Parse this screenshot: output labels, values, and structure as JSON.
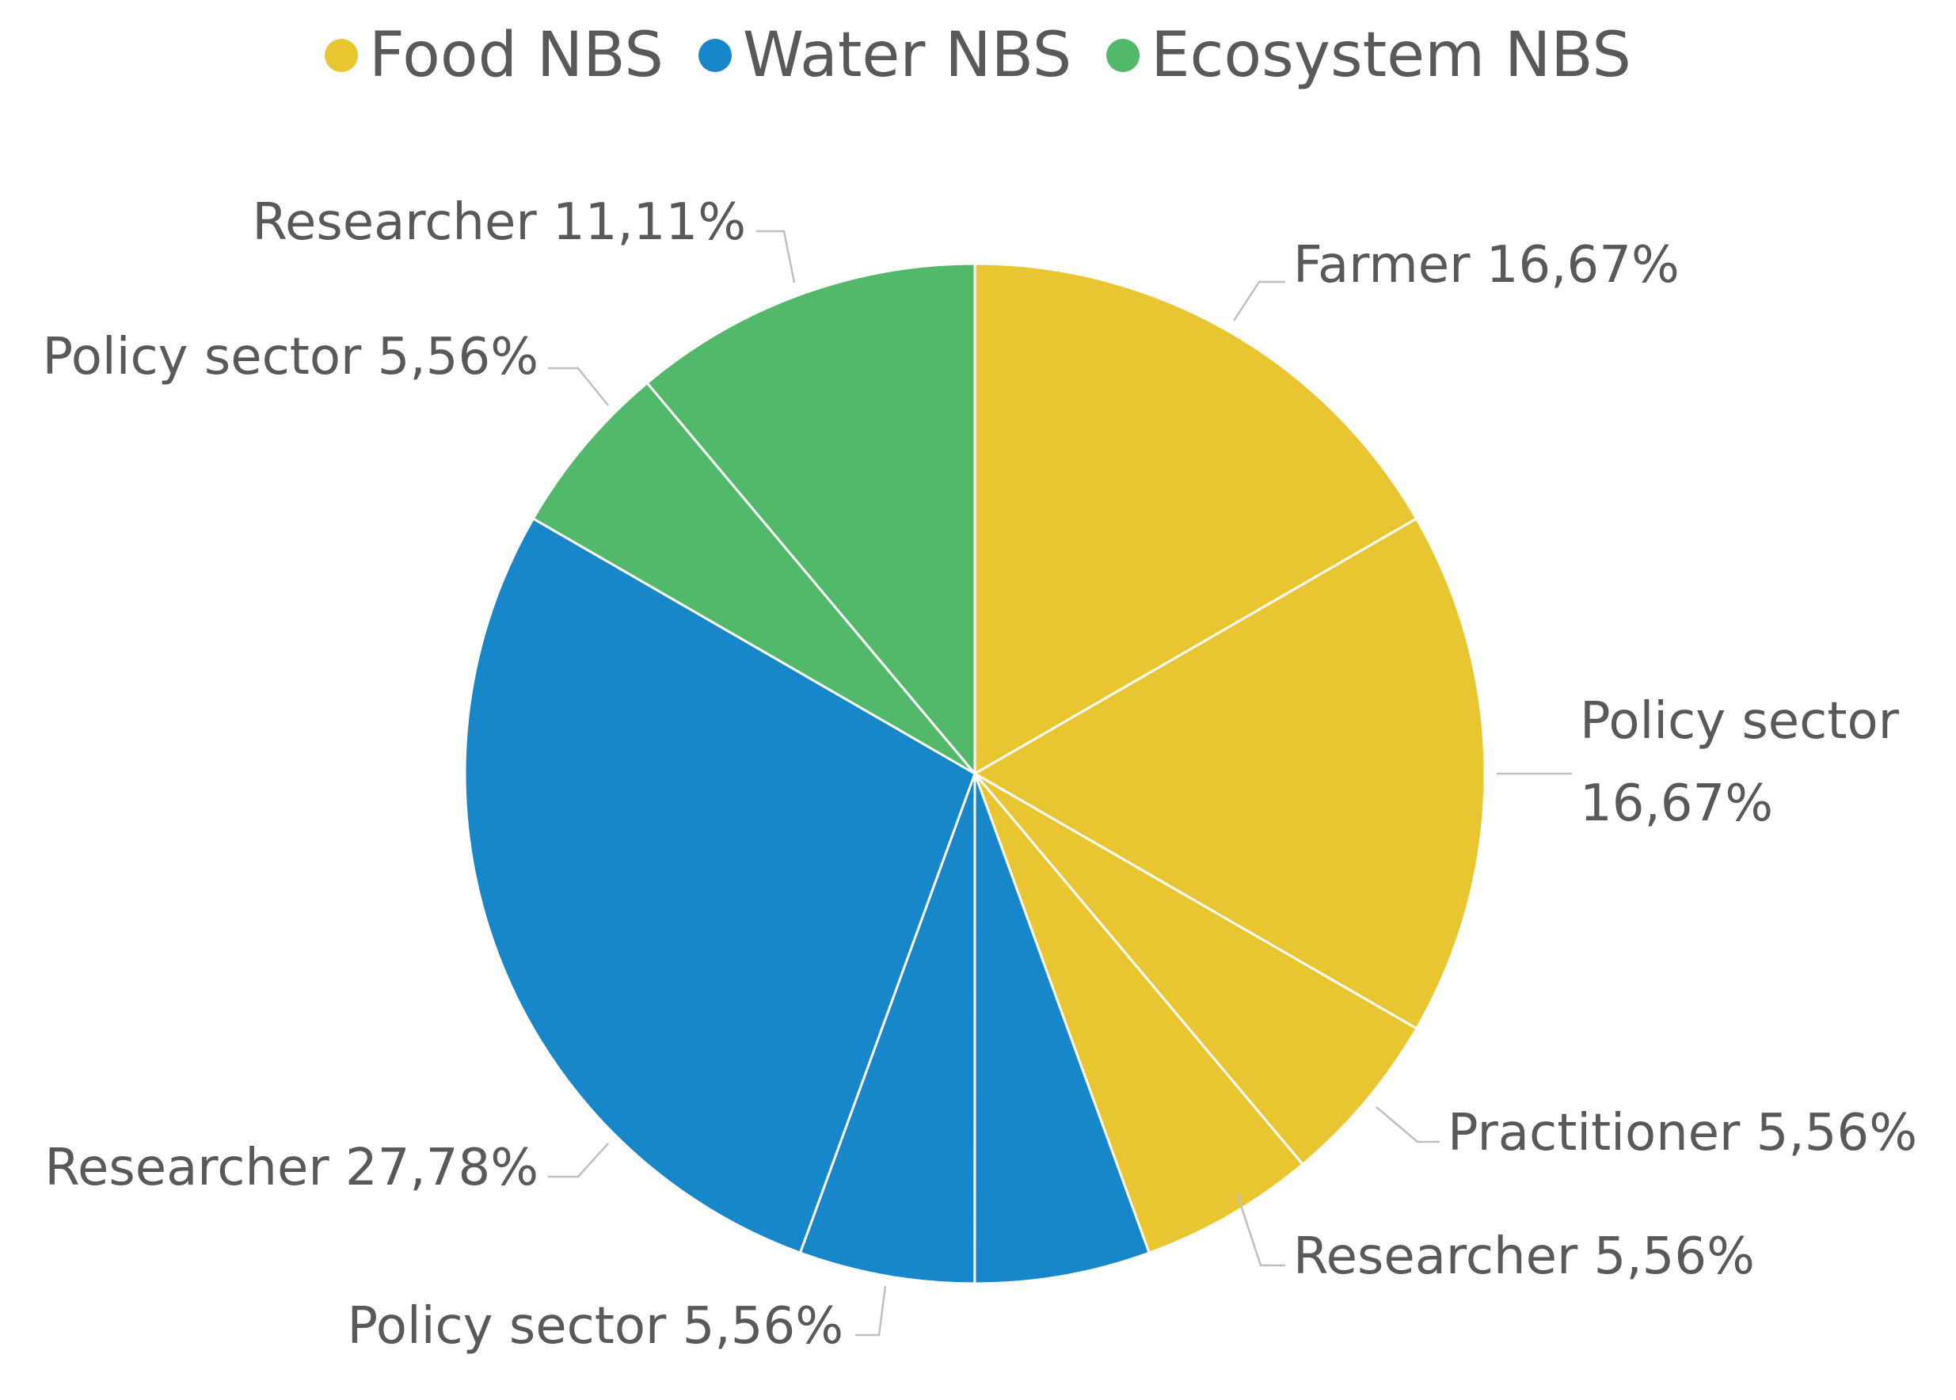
{
  "chart_data": {
    "type": "pie",
    "legend_position": "top",
    "legend": [
      {
        "name": "Food NBS",
        "color": "#EAC532"
      },
      {
        "name": "Water NBS",
        "color": "#1787C9"
      },
      {
        "name": "Ecosystem NBS",
        "color": "#52B96B"
      }
    ],
    "slices": [
      {
        "label": "Farmer",
        "value": 16.67,
        "value_label": "16,67%",
        "group": "Food NBS",
        "color": "#EAC532"
      },
      {
        "label": "Policy sector",
        "value": 16.67,
        "value_label": "16,67%",
        "group": "Food NBS",
        "color": "#EAC532"
      },
      {
        "label": "Practitioner",
        "value": 5.56,
        "value_label": "5,56%",
        "group": "Food NBS",
        "color": "#EAC532"
      },
      {
        "label": "Researcher",
        "value": 5.56,
        "value_label": "5,56%",
        "group": "Food NBS",
        "color": "#EAC532"
      },
      {
        "label": "",
        "value": 5.56,
        "value_label": "",
        "group": "Water NBS",
        "color": "#1787C9"
      },
      {
        "label": "Policy sector",
        "value": 5.56,
        "value_label": "5,56%",
        "group": "Water NBS",
        "color": "#1787C9"
      },
      {
        "label": "Researcher",
        "value": 27.78,
        "value_label": "27,78%",
        "group": "Water NBS",
        "color": "#1787C9"
      },
      {
        "label": "Policy sector",
        "value": 5.56,
        "value_label": "5,56%",
        "group": "Ecosystem NBS",
        "color": "#52B96B"
      },
      {
        "label": "Researcher",
        "value": 11.11,
        "value_label": "11,11%",
        "group": "Ecosystem NBS",
        "color": "#52B96B"
      }
    ]
  }
}
